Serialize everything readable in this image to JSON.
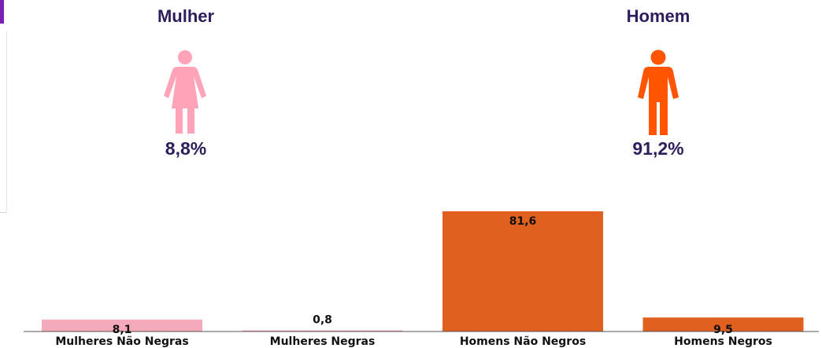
{
  "summary": {
    "female": {
      "label": "Mulher",
      "percent": "8,8%",
      "color": "#ffa3b9",
      "icon": "woman-icon"
    },
    "male": {
      "label": "Homem",
      "percent": "91,2%",
      "color": "#ff5500",
      "icon": "man-icon"
    }
  },
  "chart_data": {
    "type": "bar",
    "categories": [
      "Mulheres Não Negras",
      "Mulheres Negras",
      "Homens Não Negros",
      "Homens Negros"
    ],
    "values": [
      8.1,
      0.8,
      81.6,
      9.5
    ],
    "value_labels": [
      "8,1",
      "0,8",
      "81,6",
      "9,5"
    ],
    "colors": [
      "#f4aabb",
      "#f4aabb",
      "#e06020",
      "#e06020"
    ],
    "title": "",
    "xlabel": "",
    "ylabel": "",
    "ylim": [
      0,
      81.6
    ],
    "grid": false,
    "legend": "none"
  }
}
